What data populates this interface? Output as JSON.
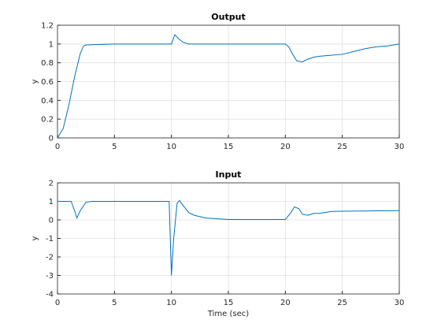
{
  "chart_data": [
    {
      "type": "line",
      "title": "Output",
      "ylabel": "y",
      "x": [
        0,
        0.5,
        1,
        1.5,
        2,
        2.3,
        2.5,
        5,
        10,
        10.3,
        10.6,
        11,
        11.5,
        12,
        15,
        20,
        20.3,
        20.6,
        21,
        21.5,
        22,
        22.5,
        23,
        24,
        25,
        26,
        27,
        28,
        29,
        30
      ],
      "series": [
        {
          "color": "#0072bd",
          "values": [
            0,
            0.1,
            0.35,
            0.65,
            0.9,
            0.98,
            0.99,
            1,
            1,
            1.1,
            1.06,
            1.02,
            1.0,
            1.0,
            1,
            1,
            0.97,
            0.9,
            0.82,
            0.81,
            0.84,
            0.86,
            0.87,
            0.88,
            0.89,
            0.92,
            0.95,
            0.97,
            0.98,
            1.0
          ]
        }
      ],
      "xlim": [
        0,
        30
      ],
      "xticks": [
        0,
        5,
        10,
        15,
        20,
        25,
        30
      ],
      "ylim": [
        0,
        1.2
      ],
      "yticks": [
        0,
        0.2,
        0.4,
        0.6,
        0.8,
        1,
        1.2
      ],
      "grid": true
    },
    {
      "type": "line",
      "title": "Input",
      "ylabel": "y",
      "xlabel": "Time (sec)",
      "x": [
        0,
        1.2,
        1.5,
        1.7,
        2,
        2.5,
        3,
        9.8,
        10,
        10.2,
        10.5,
        10.7,
        11,
        11.5,
        12,
        13,
        15,
        20,
        20.5,
        20.8,
        21.2,
        21.5,
        22,
        22.5,
        23,
        24,
        25,
        30
      ],
      "series": [
        {
          "color": "#0072bd",
          "values": [
            1,
            1,
            0.5,
            0.1,
            0.5,
            0.95,
            1,
            1,
            -3,
            -1,
            0.9,
            1.05,
            0.8,
            0.4,
            0.25,
            0.1,
            0.02,
            0.02,
            0.4,
            0.7,
            0.6,
            0.3,
            0.25,
            0.35,
            0.35,
            0.45,
            0.47,
            0.5
          ]
        }
      ],
      "xlim": [
        0,
        30
      ],
      "xticks": [
        0,
        5,
        10,
        15,
        20,
        25,
        30
      ],
      "ylim": [
        -4,
        2
      ],
      "yticks": [
        -4,
        -3,
        -2,
        -1,
        0,
        1,
        2
      ],
      "grid": true
    }
  ]
}
